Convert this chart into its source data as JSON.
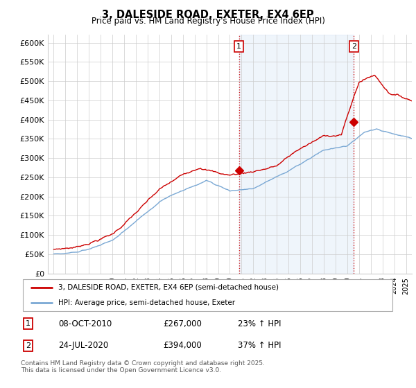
{
  "title": "3, DALESIDE ROAD, EXETER, EX4 6EP",
  "subtitle": "Price paid vs. HM Land Registry's House Price Index (HPI)",
  "ylabel_ticks": [
    "£0",
    "£50K",
    "£100K",
    "£150K",
    "£200K",
    "£250K",
    "£300K",
    "£350K",
    "£400K",
    "£450K",
    "£500K",
    "£550K",
    "£600K"
  ],
  "ytick_values": [
    0,
    50000,
    100000,
    150000,
    200000,
    250000,
    300000,
    350000,
    400000,
    450000,
    500000,
    550000,
    600000
  ],
  "xlim": [
    1994.5,
    2025.5
  ],
  "ylim": [
    0,
    620000
  ],
  "transaction1": {
    "label": "1",
    "date": "08-OCT-2010",
    "price": 267000,
    "pct": "23%",
    "x": 2010.77
  },
  "transaction2": {
    "label": "2",
    "date": "24-JUL-2020",
    "price": 394000,
    "pct": "37%",
    "x": 2020.56
  },
  "legend_property": "3, DALESIDE ROAD, EXETER, EX4 6EP (semi-detached house)",
  "legend_hpi": "HPI: Average price, semi-detached house, Exeter",
  "footnote": "Contains HM Land Registry data © Crown copyright and database right 2025.\nThis data is licensed under the Open Government Licence v3.0.",
  "property_color": "#cc0000",
  "hpi_color": "#7aa8d4",
  "shaded_color": "#ddeeff",
  "grid_color": "#cccccc",
  "background_color": "#ffffff"
}
